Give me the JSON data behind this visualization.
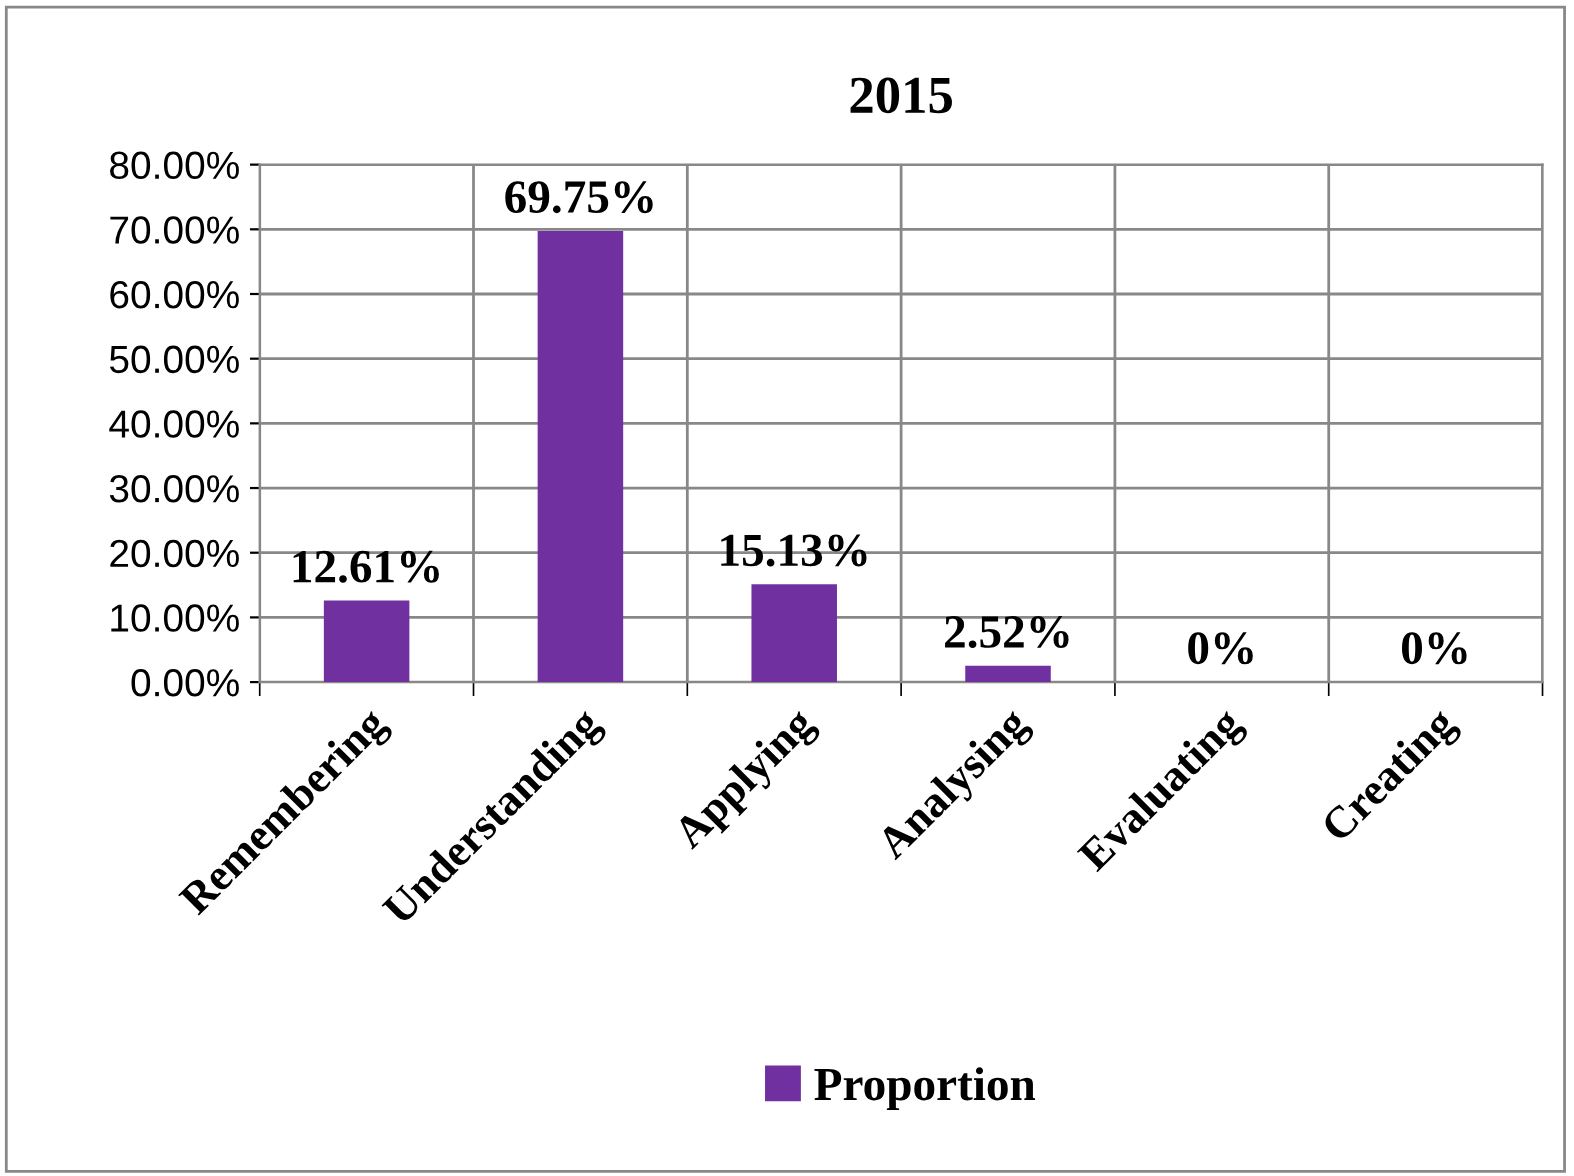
{
  "chart_data": {
    "type": "bar",
    "title": "2015",
    "categories": [
      "Remembering",
      "Understanding",
      "Applying",
      "Analysing",
      "Evaluating",
      "Creating"
    ],
    "series": [
      {
        "name": "Proportion",
        "color": "#7030a0",
        "values": [
          12.61,
          69.75,
          15.13,
          2.52,
          0,
          0
        ],
        "value_labels": [
          "12.61%",
          "69.75%",
          "15.13%",
          "2.52%",
          "0%",
          "0%"
        ]
      }
    ],
    "ylim": [
      0,
      80
    ],
    "yticks": [
      {
        "value": 0,
        "label": "0.00%"
      },
      {
        "value": 10,
        "label": "10.00%"
      },
      {
        "value": 20,
        "label": "20.00%"
      },
      {
        "value": 30,
        "label": "30.00%"
      },
      {
        "value": 40,
        "label": "40.00%"
      },
      {
        "value": 50,
        "label": "50.00%"
      },
      {
        "value": 60,
        "label": "60.00%"
      },
      {
        "value": 70,
        "label": "70.00%"
      },
      {
        "value": 80,
        "label": "80.00%"
      }
    ],
    "grid": true,
    "legend": "bottom"
  }
}
